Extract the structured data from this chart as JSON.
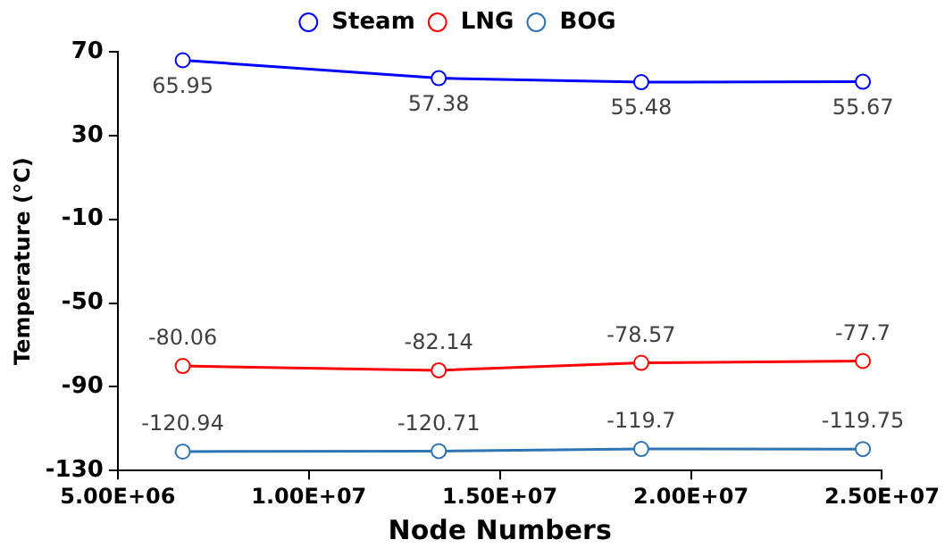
{
  "chart_data": {
    "type": "line",
    "xlabel": "Node Numbers",
    "ylabel": "Temperature (°C)",
    "x": [
      6700000,
      13400000,
      18700000,
      24500000
    ],
    "xlim": [
      5000000,
      25000000
    ],
    "xticks": [
      {
        "value": 5000000,
        "label": "5.00E+06"
      },
      {
        "value": 10000000,
        "label": "1.00E+07"
      },
      {
        "value": 15000000,
        "label": "1.50E+07"
      },
      {
        "value": 20000000,
        "label": "2.00E+07"
      },
      {
        "value": 25000000,
        "label": "2.50E+07"
      }
    ],
    "ylim": [
      -130,
      70
    ],
    "yticks": [
      -130,
      -90,
      -50,
      -10,
      30,
      70
    ],
    "series": [
      {
        "name": "Steam",
        "color": "#0000ff",
        "values": [
          65.95,
          57.38,
          55.48,
          55.67
        ]
      },
      {
        "name": "LNG",
        "color": "#ff0000",
        "values": [
          -80.06,
          -82.14,
          -78.57,
          -77.7
        ]
      },
      {
        "name": "BOG",
        "color": "#2e75b6",
        "values": [
          -120.94,
          -120.71,
          -119.7,
          -119.75
        ]
      }
    ],
    "data_labels": true,
    "grid": false,
    "legend": "top",
    "marker": "circle",
    "line_style": "solid"
  }
}
